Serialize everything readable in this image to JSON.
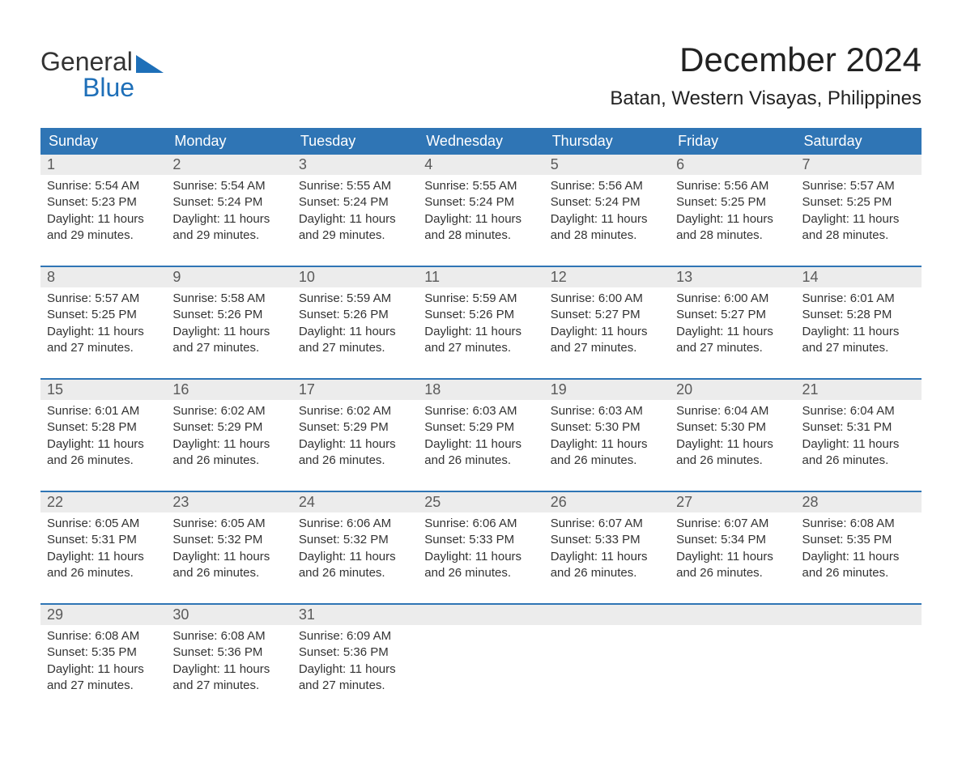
{
  "logo": {
    "text_top": "General",
    "text_bottom": "Blue"
  },
  "header": {
    "month_title": "December 2024",
    "location": "Batan, Western Visayas, Philippines"
  },
  "colors": {
    "header_bg": "#2f75b5",
    "header_text": "#ffffff",
    "daynum_bg": "#ececec",
    "daynum_text": "#5a5a5a",
    "body_text": "#333333",
    "logo_accent": "#1e6fb8",
    "background": "#ffffff"
  },
  "weekdays": [
    "Sunday",
    "Monday",
    "Tuesday",
    "Wednesday",
    "Thursday",
    "Friday",
    "Saturday"
  ],
  "labels": {
    "sunrise": "Sunrise:",
    "sunset": "Sunset:",
    "daylight": "Daylight:"
  },
  "days": [
    {
      "n": 1,
      "sunrise": "5:54 AM",
      "sunset": "5:23 PM",
      "daylight": "11 hours and 29 minutes."
    },
    {
      "n": 2,
      "sunrise": "5:54 AM",
      "sunset": "5:24 PM",
      "daylight": "11 hours and 29 minutes."
    },
    {
      "n": 3,
      "sunrise": "5:55 AM",
      "sunset": "5:24 PM",
      "daylight": "11 hours and 29 minutes."
    },
    {
      "n": 4,
      "sunrise": "5:55 AM",
      "sunset": "5:24 PM",
      "daylight": "11 hours and 28 minutes."
    },
    {
      "n": 5,
      "sunrise": "5:56 AM",
      "sunset": "5:24 PM",
      "daylight": "11 hours and 28 minutes."
    },
    {
      "n": 6,
      "sunrise": "5:56 AM",
      "sunset": "5:25 PM",
      "daylight": "11 hours and 28 minutes."
    },
    {
      "n": 7,
      "sunrise": "5:57 AM",
      "sunset": "5:25 PM",
      "daylight": "11 hours and 28 minutes."
    },
    {
      "n": 8,
      "sunrise": "5:57 AM",
      "sunset": "5:25 PM",
      "daylight": "11 hours and 27 minutes."
    },
    {
      "n": 9,
      "sunrise": "5:58 AM",
      "sunset": "5:26 PM",
      "daylight": "11 hours and 27 minutes."
    },
    {
      "n": 10,
      "sunrise": "5:59 AM",
      "sunset": "5:26 PM",
      "daylight": "11 hours and 27 minutes."
    },
    {
      "n": 11,
      "sunrise": "5:59 AM",
      "sunset": "5:26 PM",
      "daylight": "11 hours and 27 minutes."
    },
    {
      "n": 12,
      "sunrise": "6:00 AM",
      "sunset": "5:27 PM",
      "daylight": "11 hours and 27 minutes."
    },
    {
      "n": 13,
      "sunrise": "6:00 AM",
      "sunset": "5:27 PM",
      "daylight": "11 hours and 27 minutes."
    },
    {
      "n": 14,
      "sunrise": "6:01 AM",
      "sunset": "5:28 PM",
      "daylight": "11 hours and 27 minutes."
    },
    {
      "n": 15,
      "sunrise": "6:01 AM",
      "sunset": "5:28 PM",
      "daylight": "11 hours and 26 minutes."
    },
    {
      "n": 16,
      "sunrise": "6:02 AM",
      "sunset": "5:29 PM",
      "daylight": "11 hours and 26 minutes."
    },
    {
      "n": 17,
      "sunrise": "6:02 AM",
      "sunset": "5:29 PM",
      "daylight": "11 hours and 26 minutes."
    },
    {
      "n": 18,
      "sunrise": "6:03 AM",
      "sunset": "5:29 PM",
      "daylight": "11 hours and 26 minutes."
    },
    {
      "n": 19,
      "sunrise": "6:03 AM",
      "sunset": "5:30 PM",
      "daylight": "11 hours and 26 minutes."
    },
    {
      "n": 20,
      "sunrise": "6:04 AM",
      "sunset": "5:30 PM",
      "daylight": "11 hours and 26 minutes."
    },
    {
      "n": 21,
      "sunrise": "6:04 AM",
      "sunset": "5:31 PM",
      "daylight": "11 hours and 26 minutes."
    },
    {
      "n": 22,
      "sunrise": "6:05 AM",
      "sunset": "5:31 PM",
      "daylight": "11 hours and 26 minutes."
    },
    {
      "n": 23,
      "sunrise": "6:05 AM",
      "sunset": "5:32 PM",
      "daylight": "11 hours and 26 minutes."
    },
    {
      "n": 24,
      "sunrise": "6:06 AM",
      "sunset": "5:32 PM",
      "daylight": "11 hours and 26 minutes."
    },
    {
      "n": 25,
      "sunrise": "6:06 AM",
      "sunset": "5:33 PM",
      "daylight": "11 hours and 26 minutes."
    },
    {
      "n": 26,
      "sunrise": "6:07 AM",
      "sunset": "5:33 PM",
      "daylight": "11 hours and 26 minutes."
    },
    {
      "n": 27,
      "sunrise": "6:07 AM",
      "sunset": "5:34 PM",
      "daylight": "11 hours and 26 minutes."
    },
    {
      "n": 28,
      "sunrise": "6:08 AM",
      "sunset": "5:35 PM",
      "daylight": "11 hours and 26 minutes."
    },
    {
      "n": 29,
      "sunrise": "6:08 AM",
      "sunset": "5:35 PM",
      "daylight": "11 hours and 27 minutes."
    },
    {
      "n": 30,
      "sunrise": "6:08 AM",
      "sunset": "5:36 PM",
      "daylight": "11 hours and 27 minutes."
    },
    {
      "n": 31,
      "sunrise": "6:09 AM",
      "sunset": "5:36 PM",
      "daylight": "11 hours and 27 minutes."
    }
  ]
}
